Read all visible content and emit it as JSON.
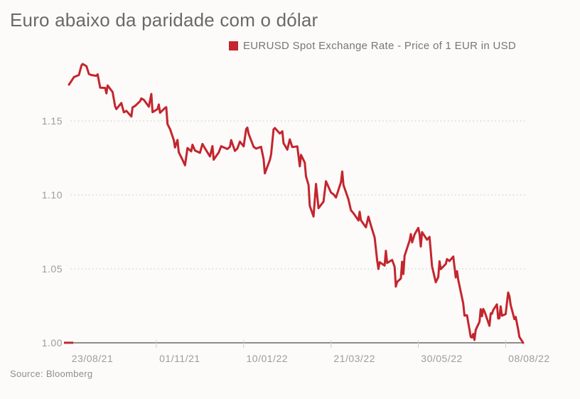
{
  "page": {
    "background": "#fcfbf9"
  },
  "header": {
    "title": "Euro abaixo da paridade com o dólar"
  },
  "legend": {
    "marker_color": "#c4252e",
    "label": "EURUSD Spot Exchange Rate - Price of 1 EUR in USD"
  },
  "footer": {
    "source": "Source: Bloomberg"
  },
  "chart_data": {
    "type": "line",
    "title": "Euro abaixo da paridade com o dólar",
    "xlabel": "",
    "ylabel": "Price of 1 EUR in USD",
    "ylim": [
      1.0,
      1.19
    ],
    "grid": "horizontal-dotted",
    "legend_position": "top-center",
    "colors": {
      "line": "#c4252e",
      "axis_line": "#8d8d8d",
      "gridline": "#d9d9d6",
      "tick": "#cfcfcf",
      "axis_label": "#9c9c9c"
    },
    "y_ticks": [
      {
        "label": "1.15",
        "value": 1.15
      },
      {
        "label": "1.10",
        "value": 1.1
      },
      {
        "label": "1.05",
        "value": 1.05
      },
      {
        "label": "1.00",
        "value": 1.0
      }
    ],
    "x_ticks": [
      "23/08/21",
      "01/11/21",
      "10/01/22",
      "21/03/22",
      "30/05/22",
      "08/08/22"
    ],
    "x_range_dates": [
      "2021-08-23",
      "2022-08-22"
    ],
    "series": [
      {
        "name": "EURUSD Spot Exchange Rate - Price of 1 EUR in USD",
        "color": "#c4252e",
        "points": [
          [
            "2021-08-23",
            1.1745
          ],
          [
            "2021-08-25",
            1.177
          ],
          [
            "2021-08-27",
            1.1796
          ],
          [
            "2021-08-31",
            1.181
          ],
          [
            "2021-09-02",
            1.1875
          ],
          [
            "2021-09-03",
            1.1885
          ],
          [
            "2021-09-06",
            1.187
          ],
          [
            "2021-09-08",
            1.1817
          ],
          [
            "2021-09-10",
            1.181
          ],
          [
            "2021-09-14",
            1.1805
          ],
          [
            "2021-09-15",
            1.1815
          ],
          [
            "2021-09-17",
            1.1725
          ],
          [
            "2021-09-21",
            1.1723
          ],
          [
            "2021-09-22",
            1.1686
          ],
          [
            "2021-09-23",
            1.174
          ],
          [
            "2021-09-27",
            1.1695
          ],
          [
            "2021-09-29",
            1.1598
          ],
          [
            "2021-09-30",
            1.158
          ],
          [
            "2021-10-04",
            1.1621
          ],
          [
            "2021-10-06",
            1.1558
          ],
          [
            "2021-10-08",
            1.1568
          ],
          [
            "2021-10-12",
            1.153
          ],
          [
            "2021-10-13",
            1.1592
          ],
          [
            "2021-10-15",
            1.1601
          ],
          [
            "2021-10-19",
            1.1633
          ],
          [
            "2021-10-20",
            1.1652
          ],
          [
            "2021-10-22",
            1.1643
          ],
          [
            "2021-10-26",
            1.1596
          ],
          [
            "2021-10-28",
            1.1682
          ],
          [
            "2021-10-29",
            1.1559
          ],
          [
            "2021-11-02",
            1.158
          ],
          [
            "2021-11-03",
            1.1611
          ],
          [
            "2021-11-04",
            1.1555
          ],
          [
            "2021-11-08",
            1.1588
          ],
          [
            "2021-11-09",
            1.1593
          ],
          [
            "2021-11-10",
            1.1478
          ],
          [
            "2021-11-12",
            1.1445
          ],
          [
            "2021-11-15",
            1.137
          ],
          [
            "2021-11-16",
            1.132
          ],
          [
            "2021-11-18",
            1.1371
          ],
          [
            "2021-11-19",
            1.1288
          ],
          [
            "2021-11-22",
            1.1237
          ],
          [
            "2021-11-24",
            1.12
          ],
          [
            "2021-11-26",
            1.1317
          ],
          [
            "2021-11-29",
            1.1294
          ],
          [
            "2021-11-30",
            1.1339
          ],
          [
            "2021-12-02",
            1.13
          ],
          [
            "2021-12-06",
            1.1284
          ],
          [
            "2021-12-08",
            1.1344
          ],
          [
            "2021-12-10",
            1.1315
          ],
          [
            "2021-12-14",
            1.126
          ],
          [
            "2021-12-16",
            1.133
          ],
          [
            "2021-12-17",
            1.1238
          ],
          [
            "2021-12-21",
            1.1287
          ],
          [
            "2021-12-23",
            1.1329
          ],
          [
            "2021-12-28",
            1.131
          ],
          [
            "2021-12-30",
            1.1325
          ],
          [
            "2021-12-31",
            1.137
          ],
          [
            "2022-01-03",
            1.1297
          ],
          [
            "2022-01-05",
            1.1314
          ],
          [
            "2022-01-07",
            1.136
          ],
          [
            "2022-01-10",
            1.1328
          ],
          [
            "2022-01-12",
            1.1444
          ],
          [
            "2022-01-13",
            1.1455
          ],
          [
            "2022-01-14",
            1.1413
          ],
          [
            "2022-01-18",
            1.1325
          ],
          [
            "2022-01-20",
            1.1313
          ],
          [
            "2022-01-24",
            1.1325
          ],
          [
            "2022-01-26",
            1.124
          ],
          [
            "2022-01-27",
            1.1145
          ],
          [
            "2022-01-31",
            1.1235
          ],
          [
            "2022-02-01",
            1.1272
          ],
          [
            "2022-02-03",
            1.1443
          ],
          [
            "2022-02-04",
            1.1452
          ],
          [
            "2022-02-08",
            1.1415
          ],
          [
            "2022-02-10",
            1.143
          ],
          [
            "2022-02-11",
            1.135
          ],
          [
            "2022-02-14",
            1.1306
          ],
          [
            "2022-02-16",
            1.1375
          ],
          [
            "2022-02-18",
            1.1323
          ],
          [
            "2022-02-22",
            1.1328
          ],
          [
            "2022-02-24",
            1.1193
          ],
          [
            "2022-02-25",
            1.127
          ],
          [
            "2022-02-28",
            1.1218
          ],
          [
            "2022-03-01",
            1.1125
          ],
          [
            "2022-03-03",
            1.1067
          ],
          [
            "2022-03-04",
            1.0926
          ],
          [
            "2022-03-07",
            1.0854
          ],
          [
            "2022-03-09",
            1.1074
          ],
          [
            "2022-03-11",
            1.091
          ],
          [
            "2022-03-15",
            1.0954
          ],
          [
            "2022-03-17",
            1.1092
          ],
          [
            "2022-03-21",
            1.1016
          ],
          [
            "2022-03-23",
            1.1004
          ],
          [
            "2022-03-25",
            1.0982
          ],
          [
            "2022-03-29",
            1.1086
          ],
          [
            "2022-03-30",
            1.1158
          ],
          [
            "2022-03-31",
            1.1067
          ],
          [
            "2022-04-04",
            1.097
          ],
          [
            "2022-04-06",
            1.0896
          ],
          [
            "2022-04-08",
            1.0876
          ],
          [
            "2022-04-12",
            1.0827
          ],
          [
            "2022-04-13",
            1.0886
          ],
          [
            "2022-04-14",
            1.0828
          ],
          [
            "2022-04-18",
            1.0781
          ],
          [
            "2022-04-20",
            1.0853
          ],
          [
            "2022-04-22",
            1.0794
          ],
          [
            "2022-04-25",
            1.0712
          ],
          [
            "2022-04-27",
            1.0558
          ],
          [
            "2022-04-28",
            1.0499
          ],
          [
            "2022-04-29",
            1.0545
          ],
          [
            "2022-05-03",
            1.0522
          ],
          [
            "2022-05-04",
            1.0622
          ],
          [
            "2022-05-05",
            1.054
          ],
          [
            "2022-05-09",
            1.056
          ],
          [
            "2022-05-11",
            1.0514
          ],
          [
            "2022-05-12",
            1.038
          ],
          [
            "2022-05-13",
            1.0411
          ],
          [
            "2022-05-16",
            1.0435
          ],
          [
            "2022-05-17",
            1.0548
          ],
          [
            "2022-05-18",
            1.0465
          ],
          [
            "2022-05-19",
            1.0588
          ],
          [
            "2022-05-23",
            1.0692
          ],
          [
            "2022-05-24",
            1.0735
          ],
          [
            "2022-05-25",
            1.0679
          ],
          [
            "2022-05-27",
            1.0733
          ],
          [
            "2022-05-30",
            1.0777
          ],
          [
            "2022-05-31",
            1.0734
          ],
          [
            "2022-06-01",
            1.0651
          ],
          [
            "2022-06-02",
            1.0748
          ],
          [
            "2022-06-06",
            1.0697
          ],
          [
            "2022-06-08",
            1.0716
          ],
          [
            "2022-06-09",
            1.0617
          ],
          [
            "2022-06-10",
            1.0518
          ],
          [
            "2022-06-13",
            1.0409
          ],
          [
            "2022-06-15",
            1.0444
          ],
          [
            "2022-06-16",
            1.0551
          ],
          [
            "2022-06-17",
            1.0498
          ],
          [
            "2022-06-21",
            1.0533
          ],
          [
            "2022-06-22",
            1.0566
          ],
          [
            "2022-06-24",
            1.0553
          ],
          [
            "2022-06-27",
            1.0583
          ],
          [
            "2022-06-29",
            1.0442
          ],
          [
            "2022-06-30",
            1.0484
          ],
          [
            "2022-07-01",
            1.0426
          ],
          [
            "2022-07-05",
            1.0266
          ],
          [
            "2022-07-06",
            1.0184
          ],
          [
            "2022-07-08",
            1.0186
          ],
          [
            "2022-07-11",
            1.004
          ],
          [
            "2022-07-12",
            1.0036
          ],
          [
            "2022-07-13",
            1.006
          ],
          [
            "2022-07-14",
            1.0019
          ],
          [
            "2022-07-15",
            1.0088
          ],
          [
            "2022-07-18",
            1.0142
          ],
          [
            "2022-07-19",
            1.0227
          ],
          [
            "2022-07-20",
            1.018
          ],
          [
            "2022-07-21",
            1.0229
          ],
          [
            "2022-07-22",
            1.0213
          ],
          [
            "2022-07-26",
            1.0115
          ],
          [
            "2022-07-27",
            1.0199
          ],
          [
            "2022-07-28",
            1.0196
          ],
          [
            "2022-07-29",
            1.0221
          ],
          [
            "2022-08-01",
            1.026
          ],
          [
            "2022-08-02",
            1.0165
          ],
          [
            "2022-08-03",
            1.0166
          ],
          [
            "2022-08-04",
            1.0246
          ],
          [
            "2022-08-05",
            1.0183
          ],
          [
            "2022-08-08",
            1.0194
          ],
          [
            "2022-08-10",
            1.034
          ],
          [
            "2022-08-11",
            1.0315
          ],
          [
            "2022-08-12",
            1.0257
          ],
          [
            "2022-08-15",
            1.016
          ],
          [
            "2022-08-16",
            1.0175
          ],
          [
            "2022-08-18",
            1.009
          ],
          [
            "2022-08-19",
            1.004
          ],
          [
            "2022-08-22",
            1.0
          ]
        ]
      }
    ]
  }
}
